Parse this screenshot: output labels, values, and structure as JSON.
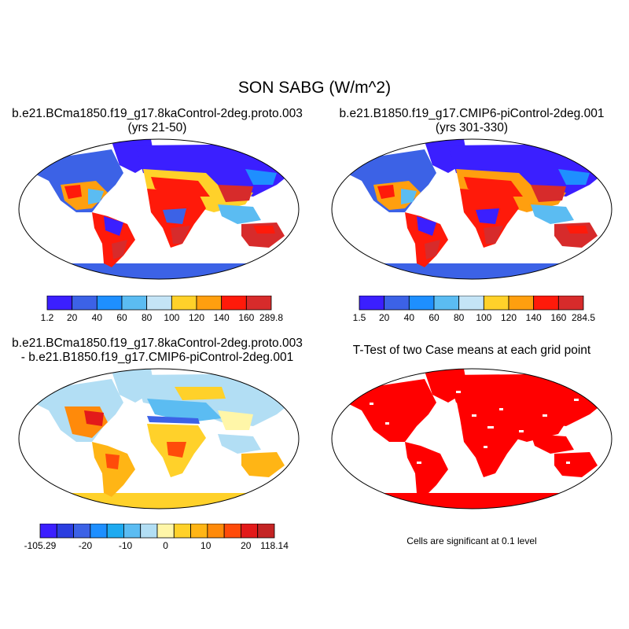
{
  "main_title": "SON SABG (W/m^2)",
  "panels": [
    {
      "id": "case1",
      "title_line1": "b.e21.BCma1850.f19_g17.8kaControl-2deg.proto.003",
      "title_line2": "(yrs 21-50)",
      "colorbar": {
        "colors": [
          "#3b1fff",
          "#3c62e6",
          "#1e8fff",
          "#5bbcf2",
          "#c4e4f6",
          "#ffd12a",
          "#ff9f0f",
          "#ff1a0a",
          "#d72b2b"
        ],
        "labels": [
          "1.2",
          "20",
          "40",
          "60",
          "80",
          "100",
          "120",
          "140",
          "160",
          "289.8"
        ]
      }
    },
    {
      "id": "case2",
      "title_line1": "b.e21.B1850.f19_g17.CMIP6-piControl-2deg.001",
      "title_line2": "(yrs 301-330)",
      "colorbar": {
        "colors": [
          "#3b1fff",
          "#3c62e6",
          "#1e8fff",
          "#5bbcf2",
          "#c4e4f6",
          "#ffd12a",
          "#ff9f0f",
          "#ff1a0a",
          "#d72b2b"
        ],
        "labels": [
          "1.5",
          "20",
          "40",
          "60",
          "80",
          "100",
          "120",
          "140",
          "160",
          "284.5"
        ]
      }
    },
    {
      "id": "difference",
      "title_line1": "b.e21.BCma1850.f19_g17.8kaControl-2deg.proto.003",
      "title_line2": "- b.e21.B1850.f19_g17.CMIP6-piControl-2deg.001",
      "colorbar": {
        "colors": [
          "#3b1fff",
          "#2b3ee0",
          "#3c62e6",
          "#1e8fff",
          "#1eaaf0",
          "#5bbcf2",
          "#b2def4",
          "#fff6a8",
          "#ffd12a",
          "#ffb515",
          "#ff8a0a",
          "#ff4b0a",
          "#e31a1a",
          "#c42424"
        ],
        "labels": [
          "-105.29",
          "-20",
          "-10",
          "0",
          "10",
          "20",
          "118.14"
        ]
      }
    },
    {
      "id": "ttest",
      "title_line1": "T-Test of two Case means at each grid point",
      "note": "Cells are significant at 0.1 level"
    }
  ]
}
